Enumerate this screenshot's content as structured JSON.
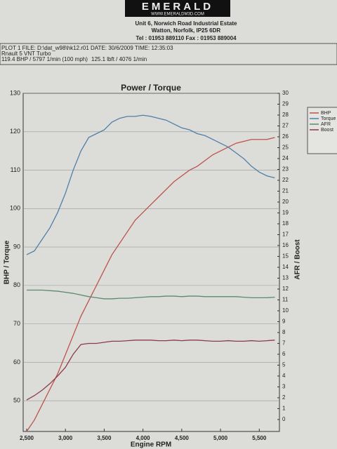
{
  "header": {
    "logo": "EMERALD",
    "website": "WWW.EMERALDM3D.COM",
    "address1": "Unit 6, Norwich Road Industrial Estate",
    "address2": "Watton, Norfolk, IP25 6DR",
    "phone": "Tel : 01953 889110   Fax : 01953 889004",
    "plot_info": "PLOT 1 FILE: D:\\dat_w98\\hk12.r01  DATE: 30/6/2009  TIME: 12:35:03",
    "vehicle": "Rnault 5 VNT Turbo",
    "peak_power": "119.4 BHP / 5797 1/min (100 mph)",
    "peak_torque": "125.1 lbft / 4076 1/min"
  },
  "chart_data": {
    "type": "line",
    "title": "Power / Torque",
    "x_label": "Engine RPM",
    "y_label": "BHP / Torque",
    "y2_label": "AFR / Boost",
    "x": [
      2500,
      2600,
      2700,
      2800,
      2900,
      3000,
      3100,
      3200,
      3300,
      3400,
      3500,
      3600,
      3700,
      3800,
      3900,
      4000,
      4100,
      4200,
      4300,
      4400,
      4500,
      4600,
      4700,
      4800,
      4900,
      5000,
      5100,
      5200,
      5300,
      5400,
      5500,
      5600,
      5700
    ],
    "xlim": [
      2455,
      5760
    ],
    "xticks": [
      {
        "value": 2500,
        "label": "2,500"
      },
      {
        "value": 3000,
        "label": "3,000"
      },
      {
        "value": 3500,
        "label": "3,500"
      },
      {
        "value": 4000,
        "label": "4,000"
      },
      {
        "value": 4500,
        "label": "4,500"
      },
      {
        "value": 5000,
        "label": "5,000"
      },
      {
        "value": 5500,
        "label": "5,500"
      }
    ],
    "ylim": [
      42,
      130
    ],
    "yticks": [
      50,
      60,
      70,
      80,
      90,
      100,
      110,
      120,
      130
    ],
    "y2lim": [
      -1.1,
      30
    ],
    "y2ticks": [
      0,
      1,
      2,
      3,
      4,
      5,
      6,
      7,
      8,
      9,
      10,
      11,
      12,
      13,
      14,
      15,
      16,
      17,
      18,
      19,
      20,
      21,
      22,
      23,
      24,
      25,
      26,
      27,
      28,
      29,
      30
    ],
    "grid": true,
    "legend": "right",
    "series": [
      {
        "name": "BHP",
        "color": "#c0504d",
        "values": [
          42,
          45,
          49,
          53,
          57,
          62,
          67,
          72,
          76,
          80,
          84,
          88,
          91,
          94,
          97,
          99,
          101,
          103,
          105,
          107,
          108.5,
          110,
          111,
          112.5,
          114,
          115,
          116,
          117,
          117.5,
          118,
          118,
          118,
          118.5
        ]
      },
      {
        "name": "Torque",
        "color": "#4f7fa8",
        "values": [
          88,
          89,
          92,
          95,
          99,
          104,
          110,
          115,
          118.5,
          119.5,
          120.5,
          122.5,
          123.5,
          124,
          124,
          124.3,
          124,
          123.5,
          123,
          122,
          121,
          120.5,
          119.5,
          119,
          118,
          117,
          116,
          114.5,
          113,
          111,
          109.5,
          108.5,
          108
        ]
      },
      {
        "name": "AFR",
        "color": "#5c8a6a",
        "axis": "y2",
        "values": [
          11.9,
          11.9,
          11.9,
          11.85,
          11.8,
          11.7,
          11.6,
          11.45,
          11.3,
          11.2,
          11.1,
          11.1,
          11.15,
          11.15,
          11.2,
          11.25,
          11.3,
          11.3,
          11.35,
          11.35,
          11.3,
          11.35,
          11.35,
          11.3,
          11.3,
          11.3,
          11.3,
          11.3,
          11.25,
          11.2,
          11.2,
          11.2,
          11.25
        ]
      },
      {
        "name": "Boost",
        "color": "#8b3a4a",
        "axis": "y2",
        "values": [
          1.8,
          2.2,
          2.7,
          3.3,
          4.0,
          4.8,
          6.0,
          6.9,
          7.0,
          7.0,
          7.1,
          7.2,
          7.2,
          7.25,
          7.3,
          7.3,
          7.3,
          7.25,
          7.25,
          7.3,
          7.25,
          7.3,
          7.3,
          7.25,
          7.2,
          7.2,
          7.25,
          7.2,
          7.2,
          7.25,
          7.2,
          7.25,
          7.3
        ]
      }
    ]
  }
}
